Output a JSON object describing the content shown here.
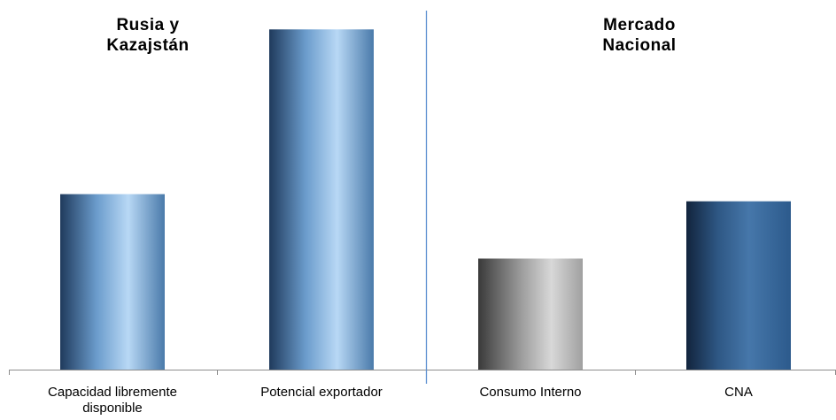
{
  "chart_data": {
    "type": "bar",
    "title": "",
    "xlabel": "",
    "ylabel": "",
    "groups": [
      {
        "title_lines": [
          "Rusia y",
          "Kazajstán"
        ],
        "categories": [
          0,
          1
        ]
      },
      {
        "title_lines": [
          "Mercado",
          "Nacional"
        ],
        "categories": [
          2,
          3
        ]
      }
    ],
    "categories": [
      [
        "Capacidad libremente",
        "disponible"
      ],
      [
        "Potencial exportador"
      ],
      [
        "Consumo Interno"
      ],
      [
        "CNA"
      ]
    ],
    "values": [
      49,
      95,
      31,
      47
    ],
    "ylim": [
      0,
      100
    ],
    "bar_styles": [
      "blue",
      "blue",
      "gray",
      "blue-dark"
    ],
    "colors": {
      "blue_edge": "#1f3a5c",
      "blue_light": "#b8d8f5",
      "blue_dark_edge": "#12243d",
      "blue_dark_mid": "#3f6fa3",
      "gray_edge": "#3a3a3a",
      "gray_light": "#d8d8d8",
      "divider": "#5b8fd0",
      "axis": "#8c8c8c"
    }
  }
}
